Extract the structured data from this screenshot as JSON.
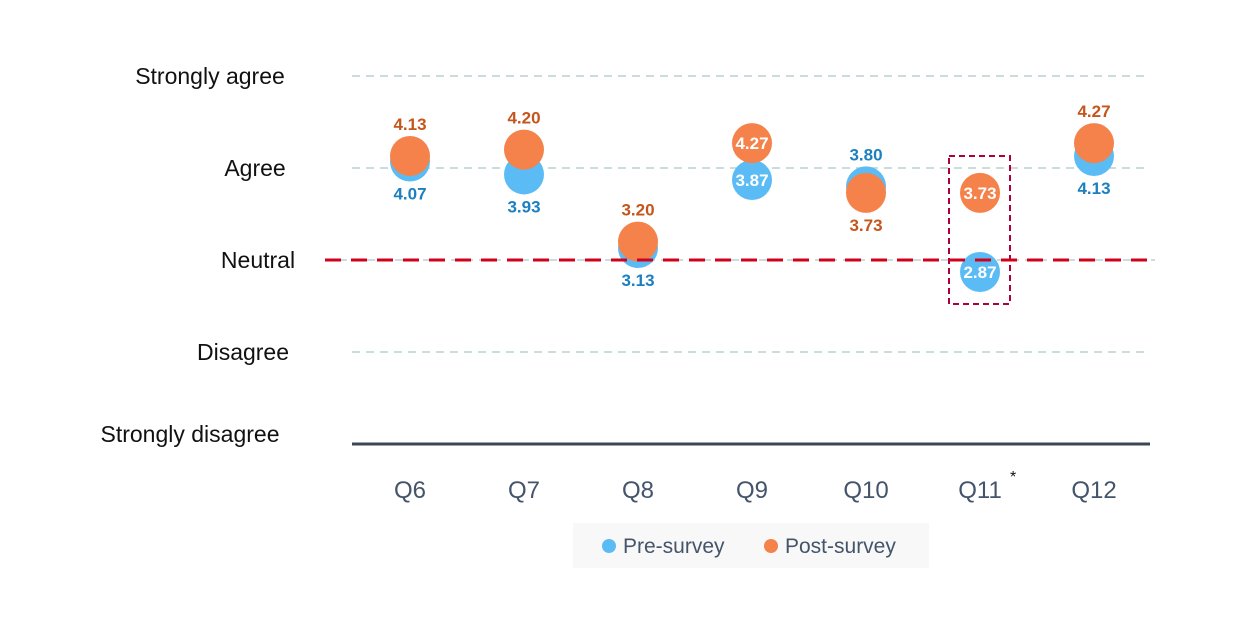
{
  "chart_data": {
    "type": "scatter",
    "title": "",
    "xlabel": "",
    "ylabel": "",
    "categories": [
      "Q6",
      "Q7",
      "Q8",
      "Q9",
      "Q10",
      "Q11",
      "Q12"
    ],
    "category_annotations": {
      "Q11": "*"
    },
    "y_ticks": [
      {
        "value": 5,
        "label": "Strongly agree"
      },
      {
        "value": 4,
        "label": "Agree"
      },
      {
        "value": 3,
        "label": "Neutral"
      },
      {
        "value": 2,
        "label": "Disagree"
      },
      {
        "value": 1,
        "label": "Strongly disagree"
      }
    ],
    "ylim": [
      1,
      5
    ],
    "grid": true,
    "reference_line": {
      "value": 3,
      "color": "#c00000"
    },
    "highlight_box_category": "Q11",
    "legend_position": "bottom",
    "series": [
      {
        "name": "Pre-survey",
        "color": "#5bbcf5",
        "values": [
          4.07,
          3.93,
          3.13,
          3.87,
          3.8,
          2.87,
          4.13
        ],
        "labels": [
          "4.07",
          "3.93",
          "3.13",
          "3.87",
          "3.80",
          "2.87",
          "4.13"
        ]
      },
      {
        "name": "Post-survey",
        "color": "#f4824a",
        "values": [
          4.13,
          4.2,
          3.2,
          4.27,
          3.73,
          3.73,
          4.27
        ],
        "labels": [
          "4.13",
          "4.20",
          "3.20",
          "4.27",
          "3.73",
          "3.73",
          "4.27"
        ]
      }
    ]
  }
}
